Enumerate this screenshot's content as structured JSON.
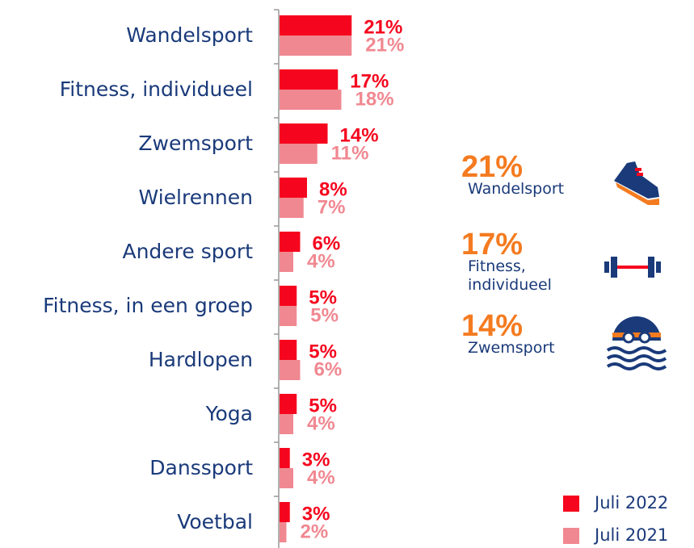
{
  "chart_data": {
    "type": "bar",
    "categories": [
      "Wandelsport",
      "Fitness, individueel",
      "Zwemsport",
      "Wielrennen",
      "Andere sport",
      "Fitness, in een groep",
      "Hardlopen",
      "Yoga",
      "Danssport",
      "Voetbal"
    ],
    "series": [
      {
        "name": "Juli 2022",
        "color": "#f5061e",
        "values": [
          21,
          17,
          14,
          8,
          6,
          5,
          5,
          5,
          3,
          3
        ],
        "value_labels": [
          "21%",
          "17%",
          "14%",
          "8%",
          "6%",
          "5%",
          "5%",
          "5%",
          "3%",
          "3%"
        ]
      },
      {
        "name": "Juli 2021",
        "color": "#f08891",
        "values": [
          21,
          18,
          11,
          7,
          4,
          5,
          6,
          4,
          4,
          2
        ],
        "value_labels": [
          "21%",
          "18%",
          "11%",
          "7%",
          "4%",
          "5%",
          "6%",
          "4%",
          "4%",
          "2%"
        ]
      }
    ],
    "legend": "bottom-right"
  },
  "highlights": [
    {
      "value_label": "21%",
      "label": "Wandelsport"
    },
    {
      "value_label": "17%",
      "label": "Fitness, individueel"
    },
    {
      "value_label": "14%",
      "label": "Zwemsport"
    }
  ]
}
